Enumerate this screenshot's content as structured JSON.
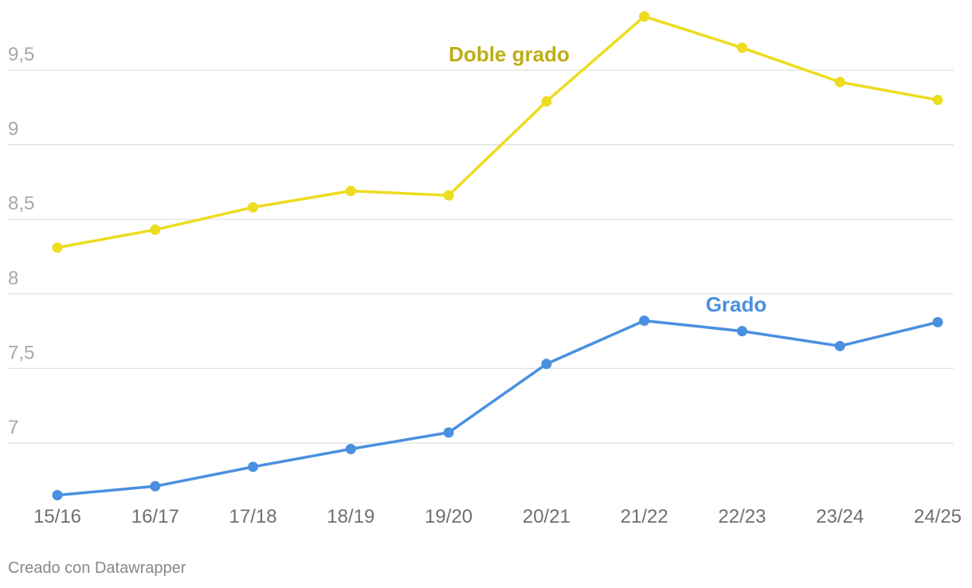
{
  "chart_data": {
    "type": "line",
    "categories": [
      "15/16",
      "16/17",
      "17/18",
      "18/19",
      "19/20",
      "20/21",
      "21/22",
      "22/23",
      "23/24",
      "24/25"
    ],
    "series": [
      {
        "name": "Doble grado",
        "color": "#eddc1f",
        "label_color": "#bdae14",
        "values": [
          8.31,
          8.43,
          8.58,
          8.69,
          8.66,
          9.29,
          9.86,
          9.65,
          9.42,
          9.3
        ]
      },
      {
        "name": "Grado",
        "color": "#4a90e0",
        "label_color": "#4a90e0",
        "values": [
          6.65,
          6.71,
          6.84,
          6.96,
          7.07,
          7.53,
          7.82,
          7.75,
          7.65,
          7.81
        ]
      }
    ],
    "yticks": [
      "7",
      "7,5",
      "8",
      "8,5",
      "9",
      "9,5"
    ],
    "ytick_values": [
      7,
      7.5,
      8,
      8.5,
      9,
      9.5
    ],
    "ylim": [
      6.55,
      9.95
    ],
    "grid": true
  },
  "footer": {
    "credit": "Creado con Datawrapper"
  }
}
